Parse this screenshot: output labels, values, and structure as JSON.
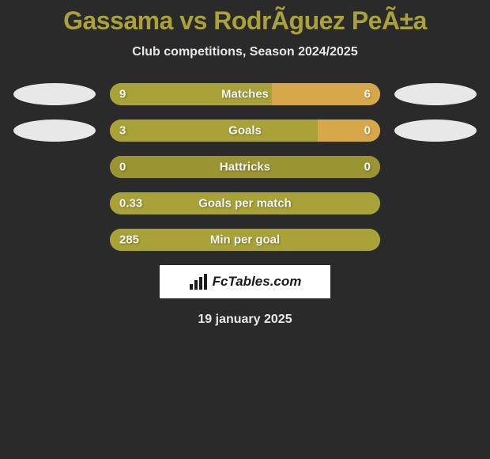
{
  "title": "Gassama vs RodrÃ­guez PeÃ±a",
  "subtitle": "Club competitions, Season 2024/2025",
  "logo_text": "FcTables.com",
  "date": "19 january 2025",
  "colors": {
    "bg": "#2a2a2a",
    "title": "#a8a238",
    "left_fill": "#a8a238",
    "right_fill": "#d6a84a",
    "track_bg": "#9a9432",
    "oval": "#e8e8e8",
    "text_light": "#f5f5f5"
  },
  "rows": [
    {
      "label": "Matches",
      "left_val": "9",
      "right_val": "6",
      "left_pct": 60,
      "right_pct": 40,
      "show_ovals": true,
      "left_color": "#a8a238",
      "right_color": "#d6a84a"
    },
    {
      "label": "Goals",
      "left_val": "3",
      "right_val": "0",
      "left_pct": 77,
      "right_pct": 23,
      "show_ovals": true,
      "left_color": "#a8a238",
      "right_color": "#d6a84a"
    },
    {
      "label": "Hattricks",
      "left_val": "0",
      "right_val": "0",
      "left_pct": 100,
      "right_pct": 0,
      "show_ovals": false,
      "left_color": "#9a9432",
      "right_color": "#d6a84a"
    },
    {
      "label": "Goals per match",
      "left_val": "0.33",
      "right_val": "",
      "left_pct": 100,
      "right_pct": 0,
      "show_ovals": false,
      "left_color": "#a8a238",
      "right_color": "#d6a84a"
    },
    {
      "label": "Min per goal",
      "left_val": "285",
      "right_val": "",
      "left_pct": 100,
      "right_pct": 0,
      "show_ovals": false,
      "left_color": "#a8a238",
      "right_color": "#d6a84a"
    }
  ]
}
